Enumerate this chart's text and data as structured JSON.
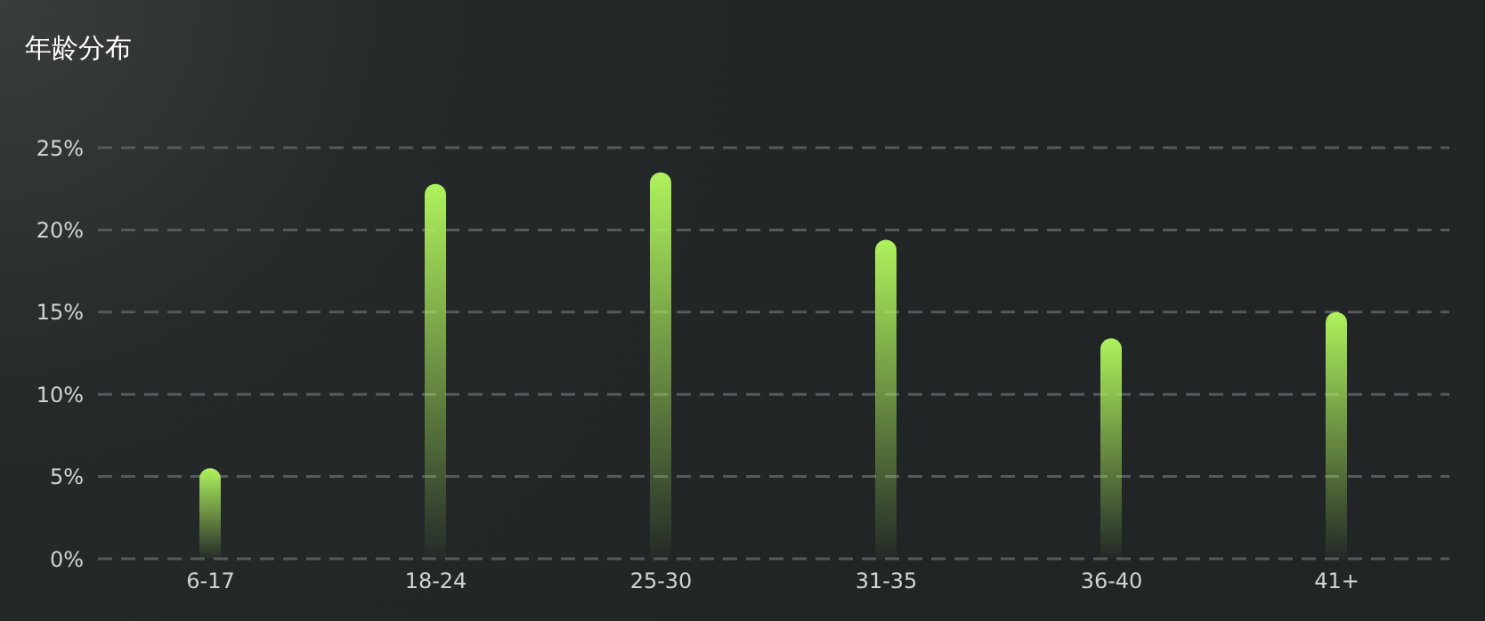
{
  "chart_data": {
    "type": "bar",
    "title": "年龄分布",
    "categories": [
      "6-17",
      "18-24",
      "25-30",
      "31-35",
      "36-40",
      "41+"
    ],
    "values": [
      5.5,
      22.8,
      23.5,
      19.4,
      13.4,
      15.0
    ],
    "color": "#aef25c",
    "ylim": [
      0,
      25
    ],
    "yticks": [
      {
        "value": 0,
        "label": "0%"
      },
      {
        "value": 5,
        "label": "5%"
      },
      {
        "value": 10,
        "label": "10%"
      },
      {
        "value": 15,
        "label": "15%"
      },
      {
        "value": 20,
        "label": "20%"
      },
      {
        "value": 25,
        "label": "25%"
      }
    ],
    "grid": "y",
    "legend": false
  }
}
